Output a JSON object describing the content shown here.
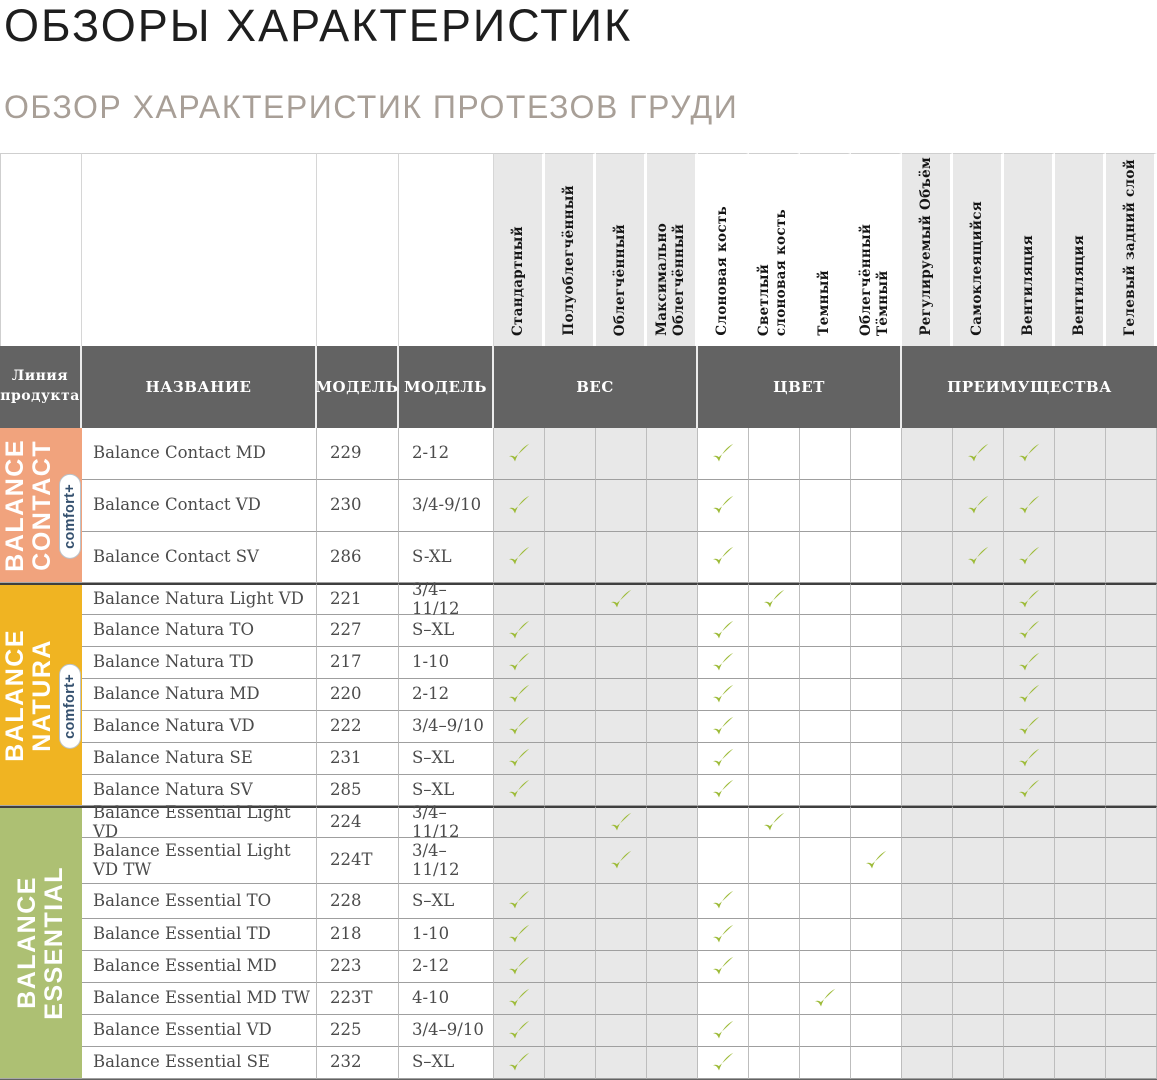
{
  "page": {
    "title": "ОБЗОРЫ ХАРАКТЕРИСТИК",
    "subtitle": "ОБЗОР ХАРАКТЕРИСТИК ПРОТЕЗОВ ГРУДИ"
  },
  "colors": {
    "header_dark": "#636363",
    "cell_gray": "#e8e8e8",
    "cell_white": "#ffffff",
    "check_green": "#9dbb38",
    "subtitle_gray": "#a89f97",
    "badge_text": "#34506e",
    "contact_orange": "#f1a37d",
    "natura_yellow": "#f0b422",
    "essential_green": "#adc073"
  },
  "table": {
    "corner_headers": [
      "Линия продукта",
      "НАЗВАНИЕ",
      "МОДЕЛЬ",
      "МОДЕЛЬ"
    ],
    "group_headers": [
      "ВЕС",
      "ЦВЕТ",
      "ПРЕИМУЩЕСТВА"
    ],
    "check_icon": "✓",
    "feature_columns": [
      {
        "label": "Стандартный",
        "group": "ВЕС"
      },
      {
        "label": "Полуоблегчённый",
        "group": "ВЕС"
      },
      {
        "label": "Облегчённый",
        "group": "ВЕС"
      },
      {
        "label": "Максимально\nОблегчённый",
        "group": "ВЕС"
      },
      {
        "label": "Слоновая кость",
        "group": "ЦВЕТ"
      },
      {
        "label": "Светлый\nслоновая кость",
        "group": "ЦВЕТ"
      },
      {
        "label": "Темный",
        "group": "ЦВЕТ"
      },
      {
        "label": "Облегчённый Тёмный",
        "group": "ЦВЕТ"
      },
      {
        "label": "Регулируемый Объём",
        "group": "ПРЕИМУЩЕСТВА"
      },
      {
        "label": "Самоклеящийся",
        "group": "ПРЕИМУЩЕСТВА"
      },
      {
        "label": "Вентиляция",
        "group": "ПРЕИМУЩЕСТВА"
      },
      {
        "label": "Вентиляция",
        "group": "ПРЕИМУЩЕСТВА"
      },
      {
        "label": "Гелевый задний слой",
        "group": "ПРЕИМУЩЕСТВА"
      }
    ],
    "product_lines": [
      {
        "name": "BALANCE CONTACT",
        "name_lines": "BALANCE\nCONTACT",
        "badge": "comfort+",
        "color": "#f1a37d",
        "rows": [
          {
            "name": "Balance Contact MD",
            "model": "229",
            "sizes": "2-12",
            "checks": [
              1,
              5,
              10,
              11
            ]
          },
          {
            "name": "Balance Contact VD",
            "model": "230",
            "sizes": "3/4-9/10",
            "checks": [
              1,
              5,
              10,
              11
            ]
          },
          {
            "name": "Balance Contact SV",
            "model": "286",
            "sizes": "S-XL",
            "checks": [
              1,
              5,
              10,
              11
            ]
          }
        ]
      },
      {
        "name": "BALANCE NATURA",
        "name_lines": "BALANCE\nNATURA",
        "badge": "comfort+",
        "color": "#f0b422",
        "rows": [
          {
            "name": "Balance Natura Light VD",
            "model": "221",
            "sizes": "3/4–11/12",
            "checks": [
              3,
              6,
              11
            ]
          },
          {
            "name": "Balance Natura TO",
            "model": "227",
            "sizes": "S–XL",
            "checks": [
              1,
              5,
              11
            ]
          },
          {
            "name": "Balance Natura TD",
            "model": "217",
            "sizes": "1-10",
            "checks": [
              1,
              5,
              11
            ]
          },
          {
            "name": "Balance Natura MD",
            "model": "220",
            "sizes": "2-12",
            "checks": [
              1,
              5,
              11
            ]
          },
          {
            "name": "Balance Natura VD",
            "model": "222",
            "sizes": "3/4–9/10",
            "checks": [
              1,
              5,
              11
            ]
          },
          {
            "name": "Balance Natura SE",
            "model": "231",
            "sizes": "S–XL",
            "checks": [
              1,
              5,
              11
            ]
          },
          {
            "name": "Balance Natura SV",
            "model": "285",
            "sizes": "S–XL",
            "checks": [
              1,
              5,
              11
            ]
          }
        ]
      },
      {
        "name": "BALANCE ESSENTIAL",
        "name_lines": "BALANCE\nESSENTIAL",
        "badge": null,
        "color": "#adc073",
        "rows": [
          {
            "name": "Balance Essential Light VD",
            "model": "224",
            "sizes": "3/4–11/12",
            "checks": [
              3,
              6
            ]
          },
          {
            "name": "Balance Essential Light VD TW",
            "model": "224T",
            "sizes": "3/4–11/12",
            "checks": [
              3,
              8
            ]
          },
          {
            "name": "Balance Essential TO",
            "model": "228",
            "sizes": "S–XL",
            "checks": [
              1,
              5
            ]
          },
          {
            "name": "Balance Essential TD",
            "model": "218",
            "sizes": "1-10",
            "checks": [
              1,
              5
            ]
          },
          {
            "name": "Balance Essential MD",
            "model": "223",
            "sizes": "2-12",
            "checks": [
              1,
              5
            ]
          },
          {
            "name": "Balance Essential MD TW",
            "model": "223T",
            "sizes": "4-10",
            "checks": [
              1,
              7
            ]
          },
          {
            "name": "Balance Essential VD",
            "model": "225",
            "sizes": "3/4–9/10",
            "checks": [
              1,
              5
            ]
          },
          {
            "name": "Balance Essential SE",
            "model": "232",
            "sizes": "S–XL",
            "checks": [
              1,
              5
            ]
          }
        ]
      }
    ]
  }
}
